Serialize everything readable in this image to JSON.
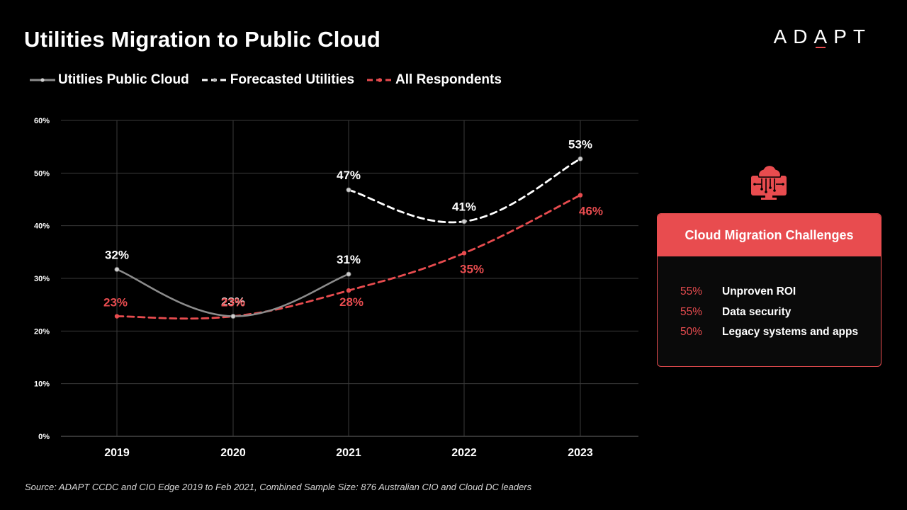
{
  "header": {
    "title": "Utilities Migration to Public Cloud",
    "logo_text": "ADAPT",
    "logo_accent_letter": "A"
  },
  "colors": {
    "background": "#000000",
    "accent": "#e84c4f",
    "grey_series": "#8c8c8c",
    "forecast_series": "#ffffff",
    "grid": "#3a3a3a"
  },
  "legend": [
    {
      "label": "Utitlies Public Cloud",
      "style": "solid-grey"
    },
    {
      "label": "Forecasted Utilities",
      "style": "dashed-white"
    },
    {
      "label": "All Respondents",
      "style": "dashed-red"
    }
  ],
  "chart_data": {
    "type": "line",
    "title": "Utilities Migration to Public Cloud",
    "categories": [
      "2019",
      "2020",
      "2021",
      "2022",
      "2023"
    ],
    "ylim": [
      0,
      60
    ],
    "yticks": [
      0,
      10,
      20,
      30,
      40,
      50,
      60
    ],
    "ytick_labels": [
      "0%",
      "10%",
      "20%",
      "30%",
      "40%",
      "50%",
      "60%"
    ],
    "grid": true,
    "legend_position": "top-left",
    "series": [
      {
        "name": "Utitlies Public Cloud",
        "color": "#8c8c8c",
        "dashed": false,
        "values": [
          31.7,
          22.8,
          30.8,
          null,
          null
        ],
        "labels": [
          "32%",
          "23%",
          "31%",
          null,
          null
        ]
      },
      {
        "name": "Forecasted Utilities",
        "color": "#ffffff",
        "dashed": true,
        "values": [
          null,
          null,
          46.8,
          40.8,
          52.7
        ],
        "labels": [
          null,
          null,
          "47%",
          "41%",
          "53%"
        ]
      },
      {
        "name": "All Respondents",
        "color": "#e84c4f",
        "dashed": true,
        "values": [
          22.8,
          22.8,
          27.7,
          34.8,
          45.8
        ],
        "labels": [
          "23%",
          "23%",
          "28%",
          "35%",
          "46%"
        ]
      }
    ]
  },
  "panel": {
    "icon": "cloud-circuit-icon",
    "title": "Cloud Migration Challenges",
    "items": [
      {
        "pct": "55%",
        "label": "Unproven ROI"
      },
      {
        "pct": "55%",
        "label": "Data security"
      },
      {
        "pct": "50%",
        "label": "Legacy systems and apps"
      }
    ]
  },
  "source": "Source: ADAPT  CCDC and CIO Edge 2019  to Feb 2021, Combined Sample Size: 876 Australian CIO and Cloud DC leaders"
}
